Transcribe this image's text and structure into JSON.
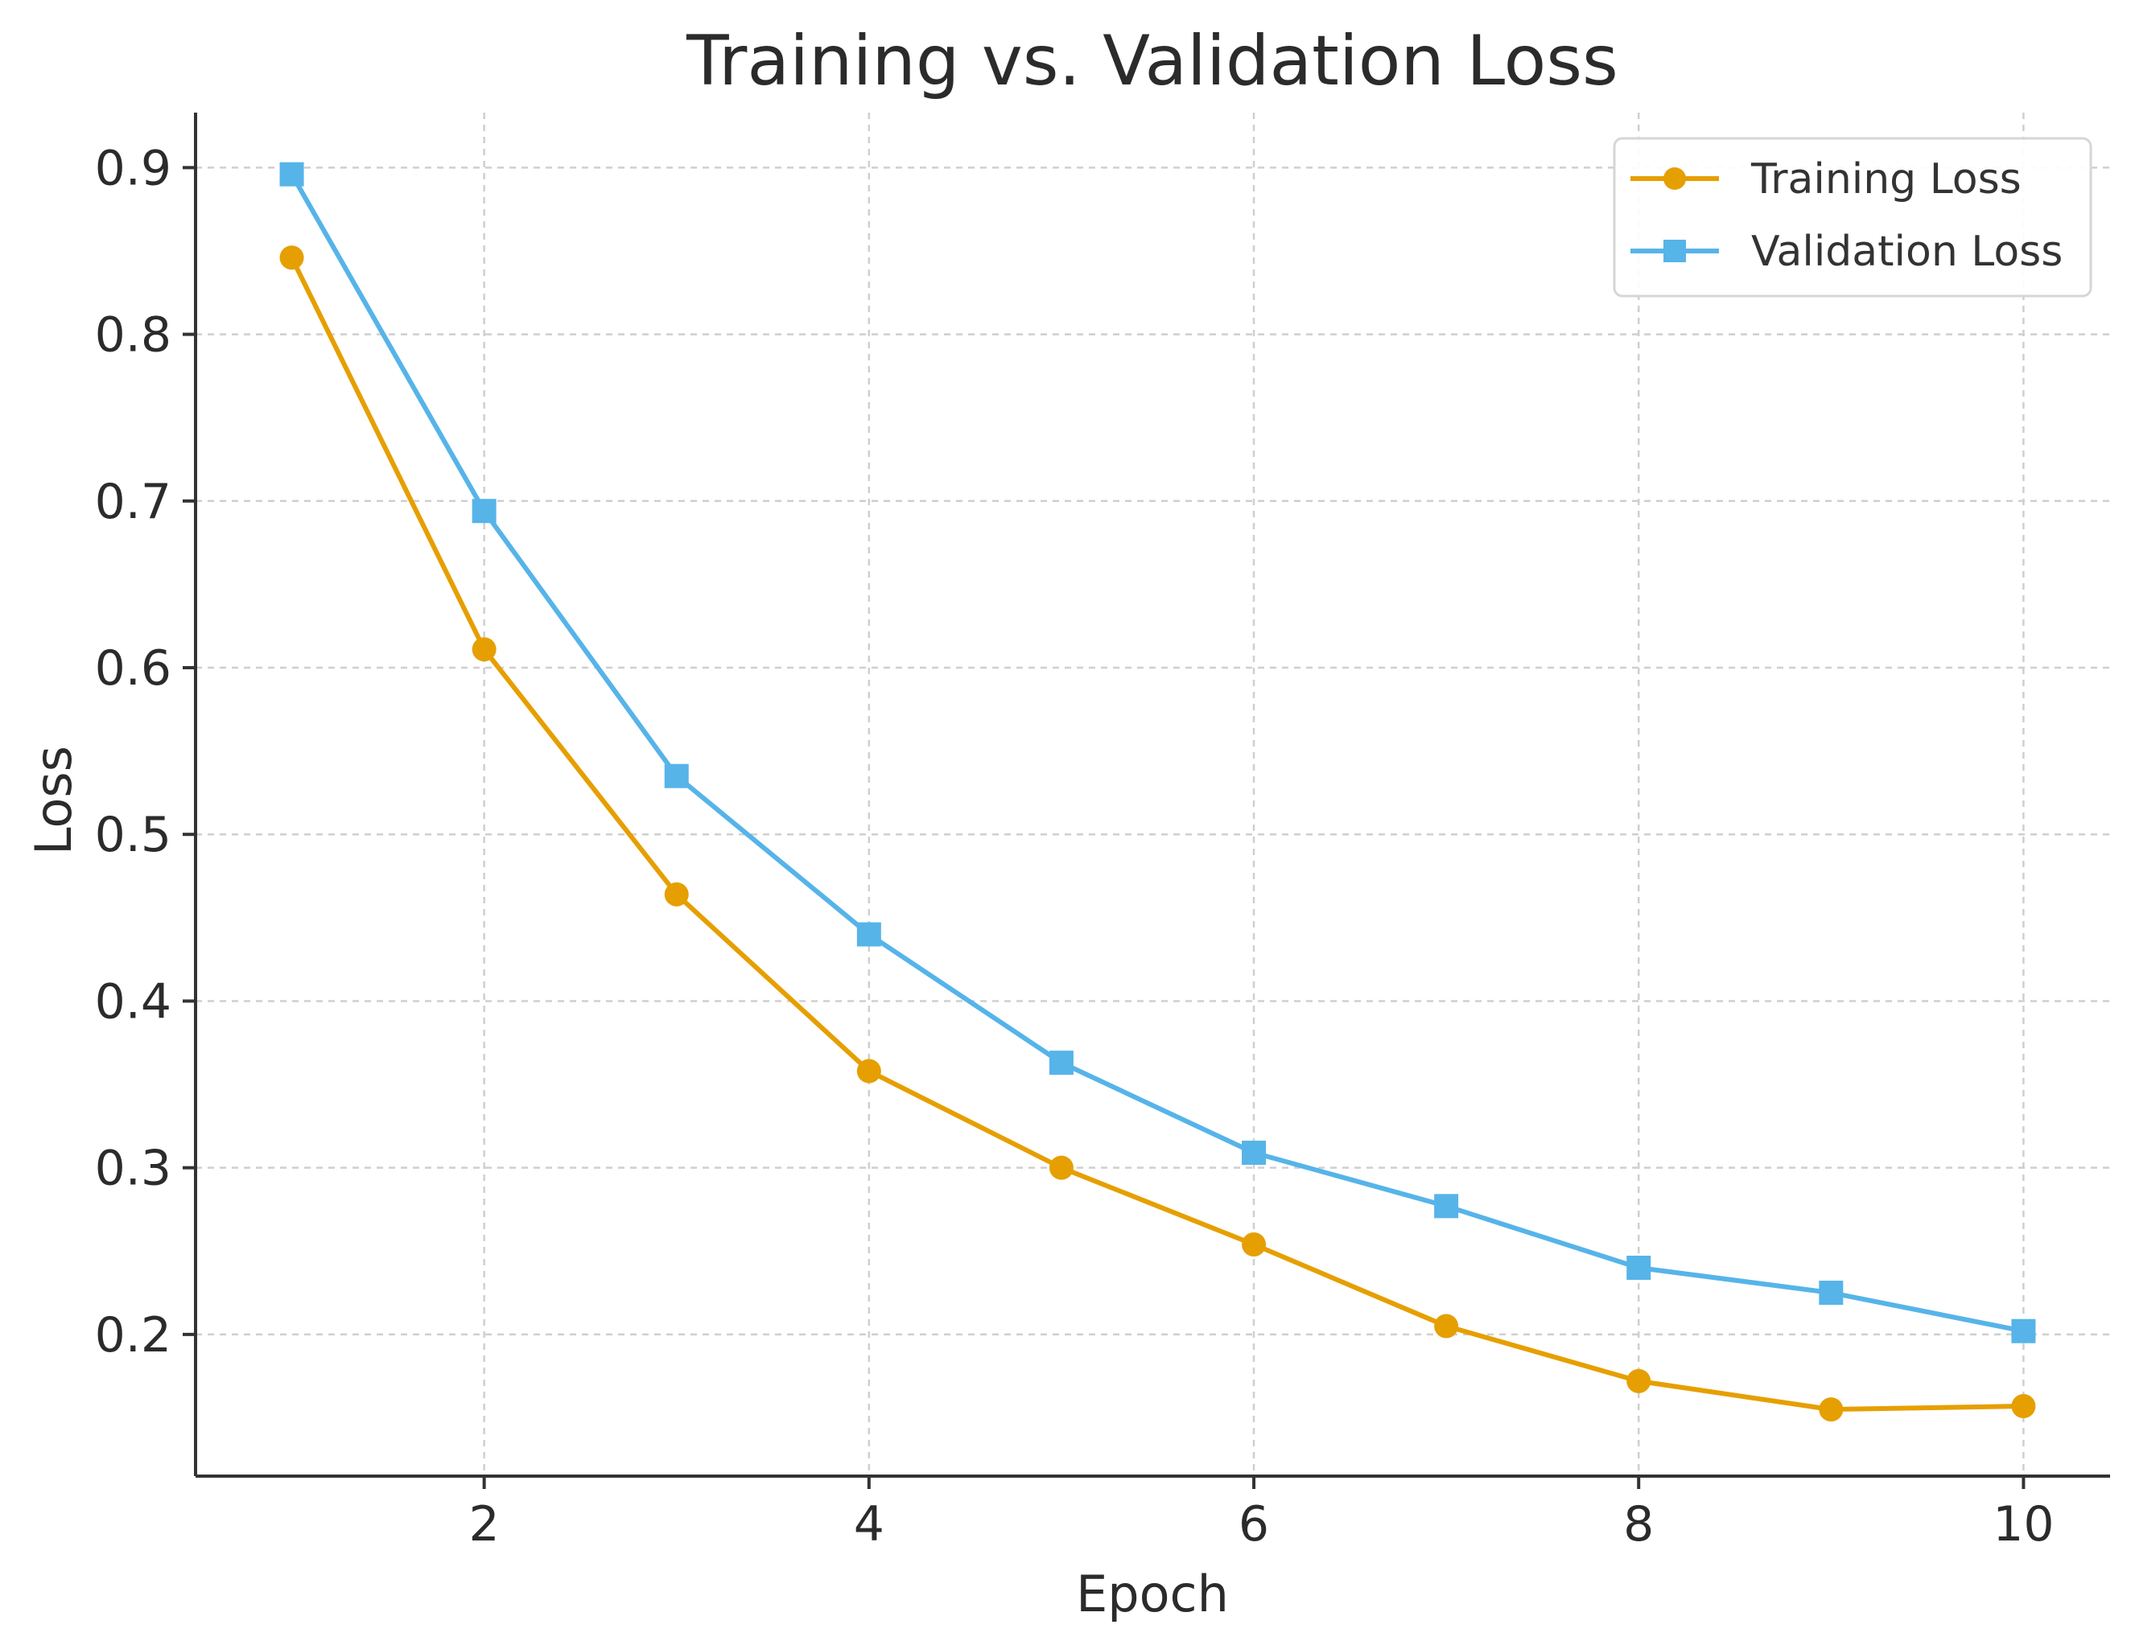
{
  "chart_data": {
    "type": "line",
    "title": "Training vs. Validation Loss",
    "xlabel": "Epoch",
    "ylabel": "Loss",
    "x": [
      1,
      2,
      3,
      4,
      5,
      6,
      7,
      8,
      9,
      10
    ],
    "xlim": [
      0.5,
      10.45
    ],
    "ylim": [
      0.115,
      0.933
    ],
    "xticks": [
      2,
      4,
      6,
      8,
      10
    ],
    "xtick_labels": [
      "2",
      "4",
      "6",
      "8",
      "10"
    ],
    "yticks": [
      0.2,
      0.3,
      0.4,
      0.5,
      0.6,
      0.7,
      0.8,
      0.9
    ],
    "ytick_labels": [
      "0.2",
      "0.3",
      "0.4",
      "0.5",
      "0.6",
      "0.7",
      "0.8",
      "0.9"
    ],
    "grid": true,
    "legend_position": "top-right",
    "series": [
      {
        "name": "Training Loss",
        "color": "#E69F00",
        "marker": "circle",
        "values": [
          0.846,
          0.611,
          0.464,
          0.358,
          0.3,
          0.254,
          0.205,
          0.172,
          0.155,
          0.157
        ]
      },
      {
        "name": "Validation Loss",
        "color": "#56B4E9",
        "marker": "square",
        "values": [
          0.896,
          0.694,
          0.535,
          0.44,
          0.363,
          0.309,
          0.277,
          0.24,
          0.225,
          0.202
        ]
      }
    ]
  }
}
